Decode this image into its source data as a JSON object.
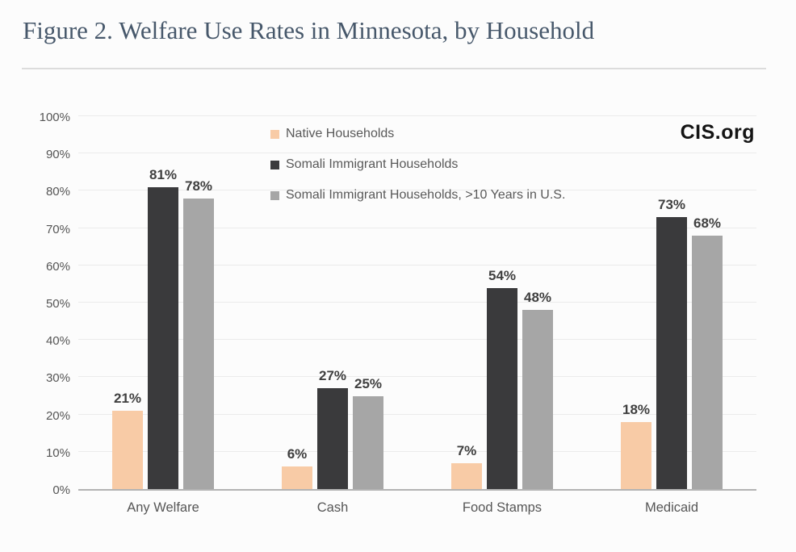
{
  "title": "Figure 2. Welfare Use Rates in Minnesota, by Household",
  "watermark": "CIS.org",
  "chart_data": {
    "type": "bar",
    "title": "Figure 2. Welfare Use Rates in Minnesota, by Household",
    "categories": [
      "Any Welfare",
      "Cash",
      "Food Stamps",
      "Medicaid"
    ],
    "series": [
      {
        "name": "Native Households",
        "color": "#f8cba6",
        "values": [
          21,
          6,
          7,
          18
        ]
      },
      {
        "name": "Somali Immigrant Households",
        "color": "#3a3a3c",
        "values": [
          81,
          27,
          54,
          73
        ]
      },
      {
        "name": "Somali Immigrant Households, >10 Years in U.S.",
        "color": "#a6a6a6",
        "values": [
          78,
          25,
          48,
          68
        ]
      }
    ],
    "value_suffix": "%",
    "xlabel": "",
    "ylabel": "",
    "ylim": [
      0,
      100
    ],
    "yticks": [
      0,
      10,
      20,
      30,
      40,
      50,
      60,
      70,
      80,
      90,
      100
    ],
    "ytick_suffix": "%",
    "grid": true,
    "data_labels": true,
    "legend_position": "top-left-inside"
  }
}
